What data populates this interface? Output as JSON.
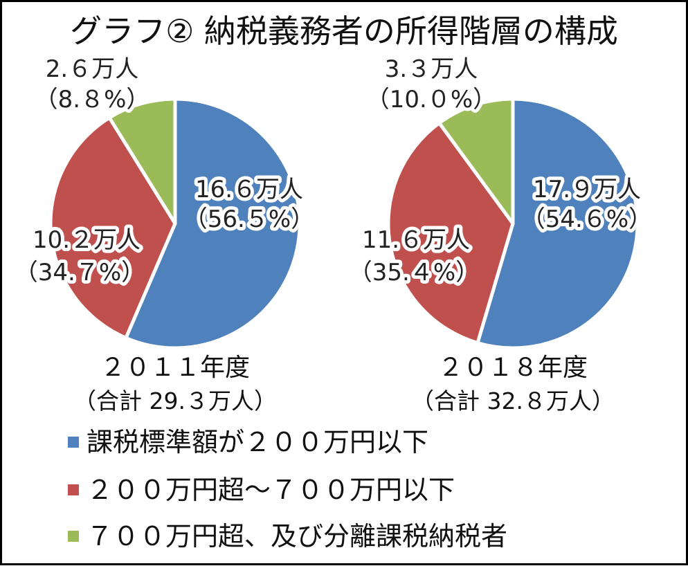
{
  "colors": {
    "blue": "#4F81BD",
    "red": "#C0504D",
    "green": "#9BBB59"
  },
  "chart_data": {
    "type": "pie",
    "title": "グラフ② 納税義務者の所得階層の構成",
    "legend": {
      "placement": "bottom",
      "entries": [
        "課税標準額が２００万円以下",
        "２００万円超～７００万円以下",
        "７００万円超、及び分離課税納税者"
      ]
    },
    "charts": [
      {
        "year_label": "２０１１年度",
        "total_label": "（合計 29.３万人）",
        "slices": [
          {
            "value": 16.6,
            "percent": 56.5,
            "value_label": "16.６万人",
            "percent_label": "（56.５%）"
          },
          {
            "value": 10.2,
            "percent": 34.7,
            "value_label": "10.２万人",
            "percent_label": "（34.７%）"
          },
          {
            "value": 2.6,
            "percent": 8.8,
            "value_label": "2.６万人",
            "percent_label": "（8.８%）"
          }
        ]
      },
      {
        "year_label": "２０１８年度",
        "total_label": "（合計 32.８万人）",
        "slices": [
          {
            "value": 17.9,
            "percent": 54.6,
            "value_label": "17.９万人",
            "percent_label": "（54.６%）"
          },
          {
            "value": 11.6,
            "percent": 35.4,
            "value_label": "11.６万人",
            "percent_label": "（35.４%）"
          },
          {
            "value": 3.3,
            "percent": 10.0,
            "value_label": "3.３万人",
            "percent_label": "（10.０%）"
          }
        ]
      }
    ]
  }
}
